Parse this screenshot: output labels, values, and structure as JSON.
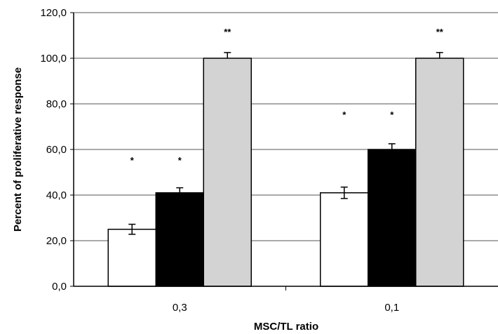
{
  "chart_data": {
    "type": "bar",
    "title": "",
    "xlabel": "MSC/TL ratio",
    "ylabel": "Percent of proliferative response",
    "ylim": [
      0,
      120
    ],
    "y_ticks": [
      "0,0",
      "20,0",
      "40,0",
      "60,0",
      "80,0",
      "100,0",
      "120,0"
    ],
    "categories": [
      "0,3",
      "0,1"
    ],
    "grid": true,
    "legend": "none",
    "series": [
      {
        "color": "#ffffff",
        "values": [
          25,
          41
        ],
        "errors": [
          2.2,
          2.5
        ],
        "markers": [
          "*",
          "*"
        ]
      },
      {
        "color": "#000000",
        "values": [
          41,
          60
        ],
        "errors": [
          2.2,
          2.5
        ],
        "markers": [
          "*",
          "*"
        ]
      },
      {
        "color": "#d3d3d3",
        "values": [
          100,
          100
        ],
        "errors": [
          2.5,
          2.5
        ],
        "markers": [
          "**",
          "**"
        ]
      }
    ]
  }
}
